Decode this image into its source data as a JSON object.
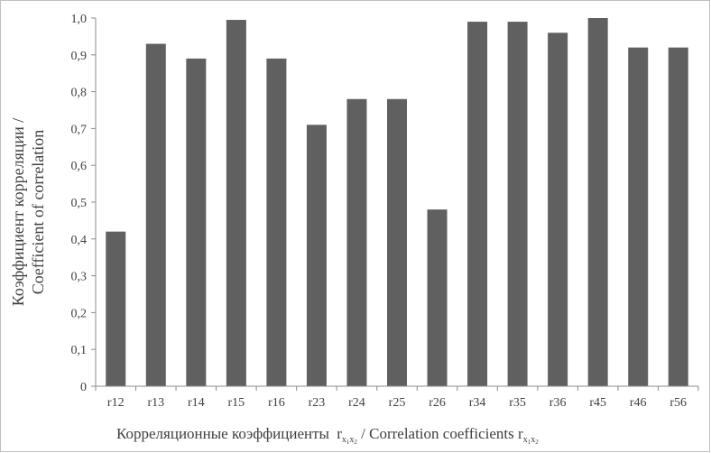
{
  "chart_data": {
    "type": "bar",
    "categories": [
      "r12",
      "r13",
      "r14",
      "r15",
      "r16",
      "r23",
      "r24",
      "r25",
      "r26",
      "r34",
      "r35",
      "r36",
      "r45",
      "r46",
      "r56"
    ],
    "values": [
      0.42,
      0.93,
      0.89,
      0.995,
      0.89,
      0.71,
      0.78,
      0.78,
      0.48,
      0.99,
      0.99,
      0.96,
      1.0,
      0.92,
      0.92
    ],
    "ylim": [
      0,
      1.0
    ],
    "yticks": [
      "0",
      "0,1",
      "0,2",
      "0,3",
      "0,4",
      "0,5",
      "0,6",
      "0,7",
      "0,8",
      "0,9",
      "1,0"
    ],
    "ylabel_line1": "Коэффициент корреляции /",
    "ylabel_line2": "Coefficient of correlation",
    "xlabel": {
      "part1": "Корреляционные коэффициенты ",
      "r1": "r",
      "x1a": "x",
      "s1a": "1",
      "x1b": "x",
      "s1b": "2",
      "part2": " / Correlation coefficients ",
      "r2": "r",
      "x2a": "x",
      "s2a": "1",
      "x2b": "x",
      "s2b": "2"
    },
    "bar_color": "#606060",
    "grid": false,
    "legend": "none"
  }
}
